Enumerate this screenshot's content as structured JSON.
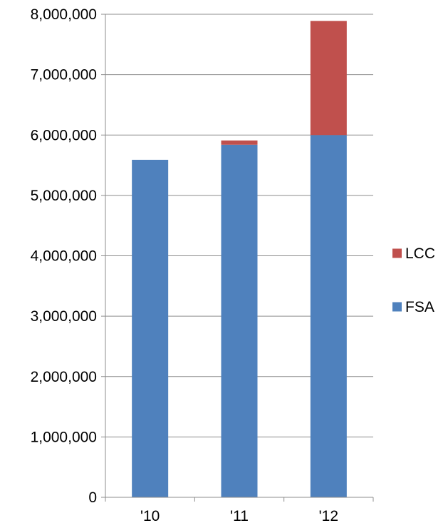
{
  "chart_data": {
    "type": "bar",
    "stacked": true,
    "title": "",
    "xlabel": "",
    "ylabel": "",
    "categories": [
      "'10",
      "'11",
      "'12"
    ],
    "series": [
      {
        "name": "FSA",
        "color": "#4F81BD",
        "values": [
          5590000,
          5840000,
          6000000
        ]
      },
      {
        "name": "LCC",
        "color": "#C0504D",
        "values": [
          0,
          70000,
          1890000
        ]
      }
    ],
    "ylim": [
      0,
      8000000
    ],
    "yticks": [
      0,
      1000000,
      2000000,
      3000000,
      4000000,
      5000000,
      6000000,
      7000000,
      8000000
    ],
    "ytick_labels": [
      "0",
      "1,000,000",
      "2,000,000",
      "3,000,000",
      "4,000,000",
      "5,000,000",
      "6,000,000",
      "7,000,000",
      "8,000,000"
    ],
    "grid": true,
    "legend": {
      "position": "right",
      "order": [
        "LCC",
        "FSA"
      ]
    }
  }
}
